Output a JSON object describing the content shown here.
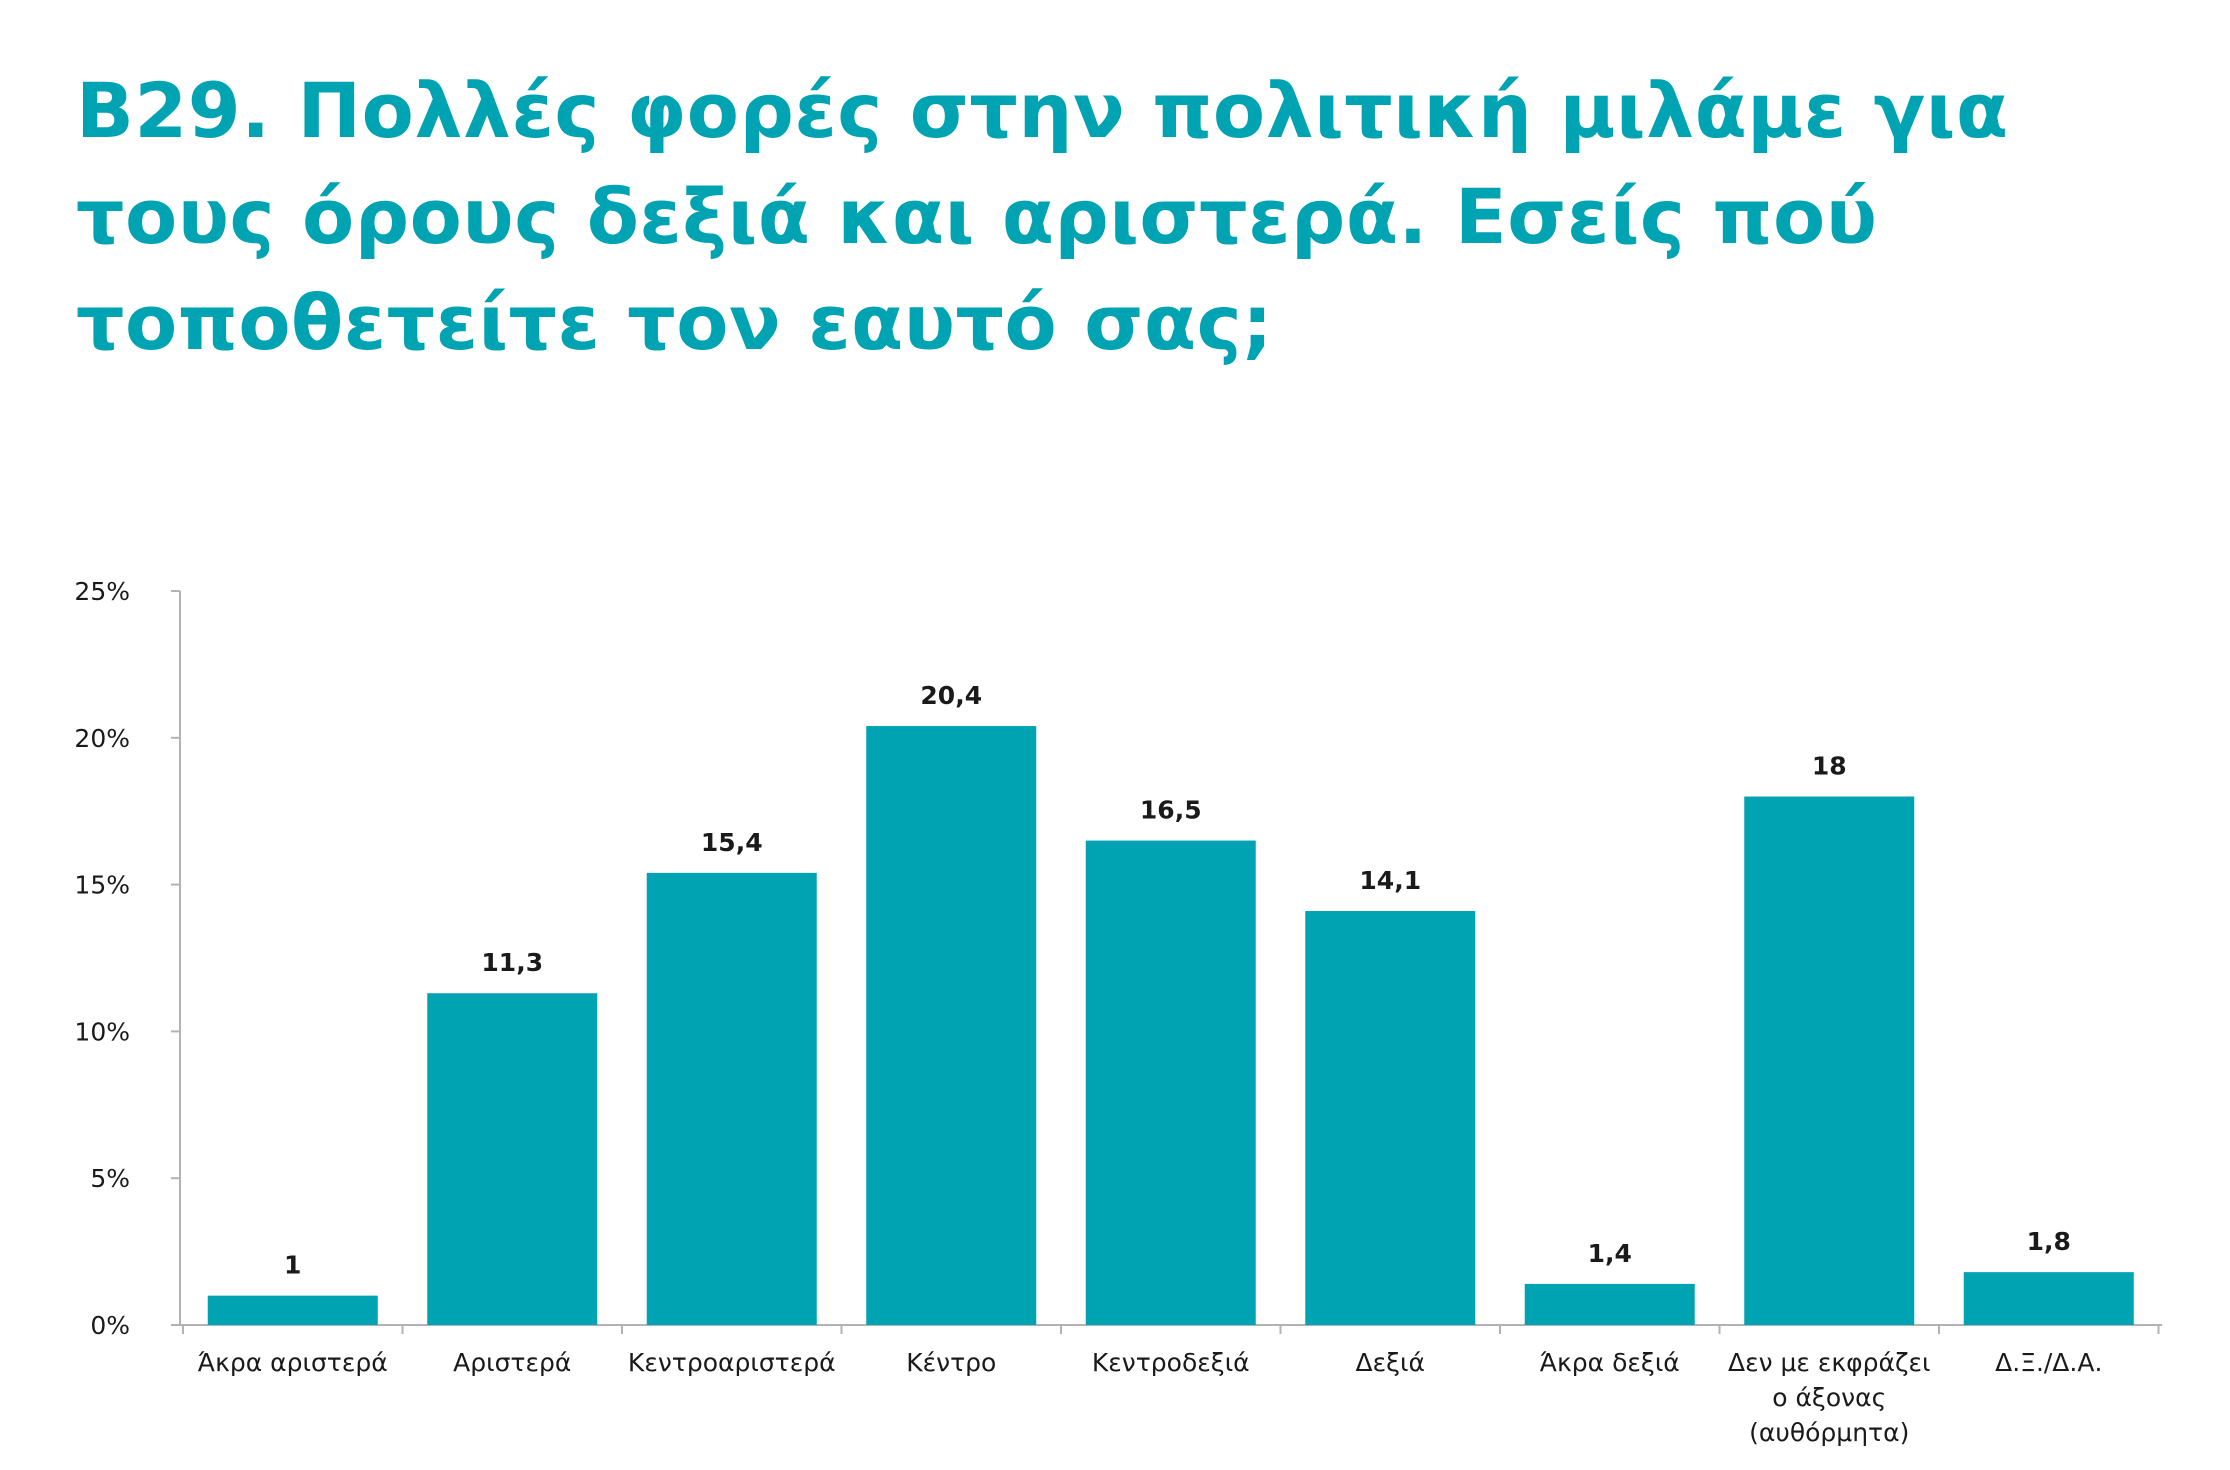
{
  "chart_data": {
    "type": "bar",
    "title": "Β29. Πολλές φορές στην πολιτική μιλάμε για τους όρους δεξιά και αριστερά. Εσείς πού τοποθετείτε τον εαυτό σας;",
    "categories": [
      "Άκρα αριστερά",
      "Αριστερά",
      "Κεντροαριστερά",
      "Κέντρο",
      "Κεντροδεξιά",
      "Δεξιά",
      "Άκρα δεξιά",
      "Δεν με εκφράζει ο άξονας (αυθόρμητα)",
      "Δ.Ξ./Δ.Α."
    ],
    "category_lines": [
      [
        "Άκρα αριστερά"
      ],
      [
        "Αριστερά"
      ],
      [
        "Κεντροαριστερά"
      ],
      [
        "Κέντρο"
      ],
      [
        "Κεντροδεξιά"
      ],
      [
        "Δεξιά"
      ],
      [
        "Άκρα δεξιά"
      ],
      [
        "Δεν με εκφράζει",
        "ο άξονας",
        "(αυθόρμητα)"
      ],
      [
        "Δ.Ξ./Δ.Α."
      ]
    ],
    "values": [
      1,
      11.3,
      15.4,
      20.4,
      16.5,
      14.1,
      1.4,
      18,
      1.8
    ],
    "data_labels": [
      "1",
      "11,3",
      "15,4",
      "20,4",
      "16,5",
      "14,1",
      "1,4",
      "18",
      "1,8"
    ],
    "ylim": [
      0,
      25
    ],
    "yticks": [
      0,
      5,
      10,
      15,
      20,
      25
    ],
    "ytick_labels": [
      "0%",
      "5%",
      "10%",
      "15%",
      "20%",
      "25%"
    ],
    "xlabel": "",
    "ylabel": "",
    "grid": false,
    "bar_color": "#00a3b2",
    "axis_color": "#b3b3b3"
  }
}
